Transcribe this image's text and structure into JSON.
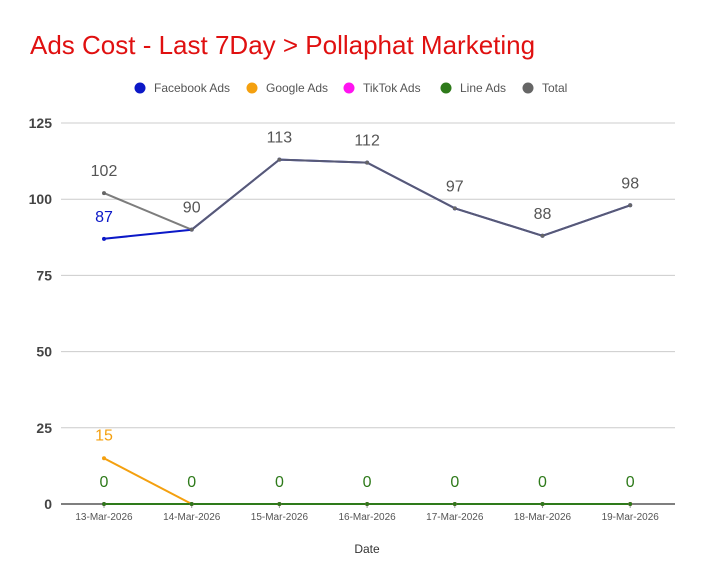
{
  "chart_data": {
    "type": "line",
    "title": "Ads Cost - Last 7Day > Pollaphat Marketing",
    "xlabel": "Date",
    "ylabel": "",
    "categories": [
      "13-Mar-2026",
      "14-Mar-2026",
      "15-Mar-2026",
      "16-Mar-2026",
      "17-Mar-2026",
      "18-Mar-2026",
      "19-Mar-2026"
    ],
    "ylim": [
      0,
      125
    ],
    "yticks": [
      0,
      25,
      50,
      75,
      100,
      125
    ],
    "grid": true,
    "legend_position": "top",
    "series": [
      {
        "name": "Facebook Ads",
        "color": "#0b18c7",
        "values": [
          87,
          90,
          113,
          112,
          97,
          88,
          98
        ],
        "labels": [
          "87",
          "",
          "",
          "",
          "",
          "",
          ""
        ]
      },
      {
        "name": "Google Ads",
        "color": "#f4a00f",
        "values": [
          15,
          0,
          0,
          0,
          0,
          0,
          0
        ],
        "labels": [
          "15",
          "",
          "",
          "",
          "",
          "",
          ""
        ]
      },
      {
        "name": "TikTok Ads",
        "color": "#ff14f0",
        "values": [
          0,
          0,
          0,
          0,
          0,
          0,
          0
        ],
        "labels": [
          "",
          "",
          "",
          "",
          "",
          "",
          ""
        ]
      },
      {
        "name": "Line Ads",
        "color": "#2e7a1a",
        "values": [
          0,
          0,
          0,
          0,
          0,
          0,
          0
        ],
        "labels": [
          "0",
          "0",
          "0",
          "0",
          "0",
          "0",
          "0"
        ]
      },
      {
        "name": "Total",
        "color": "#666666",
        "values": [
          102,
          90,
          113,
          112,
          97,
          88,
          98
        ],
        "labels": [
          "102",
          "90",
          "113",
          "112",
          "97",
          "88",
          "98"
        ]
      }
    ]
  },
  "colors": {
    "title": "#e01010",
    "grid": "#cccccc",
    "axis": "#333333"
  }
}
